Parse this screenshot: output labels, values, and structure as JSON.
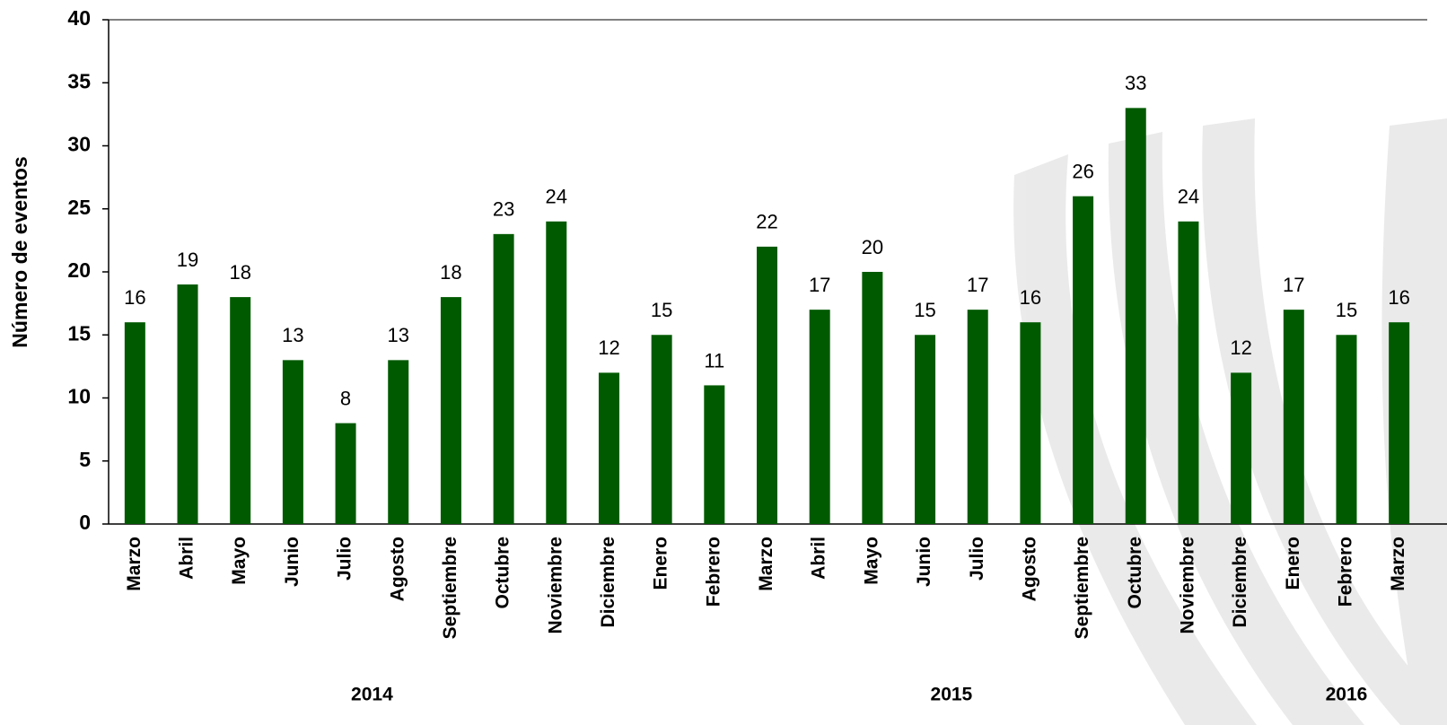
{
  "chart_data": {
    "type": "bar",
    "ylabel": "Número de eventos",
    "categories": [
      "Marzo",
      "Abril",
      "Mayo",
      "Junio",
      "Julio",
      "Agosto",
      "Septiembre",
      "Octubre",
      "Noviembre",
      "Diciembre",
      "Enero",
      "Febrero",
      "Marzo",
      "Abril",
      "Mayo",
      "Junio",
      "Julio",
      "Agosto",
      "Septiembre",
      "Octubre",
      "Noviembre",
      "Diciembre",
      "Enero",
      "Febrero",
      "Marzo"
    ],
    "values": [
      16,
      19,
      18,
      13,
      8,
      13,
      18,
      23,
      24,
      12,
      15,
      11,
      22,
      17,
      20,
      15,
      17,
      16,
      26,
      33,
      24,
      12,
      17,
      15,
      16
    ],
    "groups": [
      {
        "label": "2014",
        "count": 10
      },
      {
        "label": "2015",
        "count": 12
      },
      {
        "label": "2016",
        "count": 3
      }
    ],
    "color": "#005a00",
    "ylim": [
      0,
      40
    ],
    "yticks": [
      0,
      5,
      10,
      15,
      20,
      25,
      30,
      35,
      40
    ],
    "grid": false
  }
}
